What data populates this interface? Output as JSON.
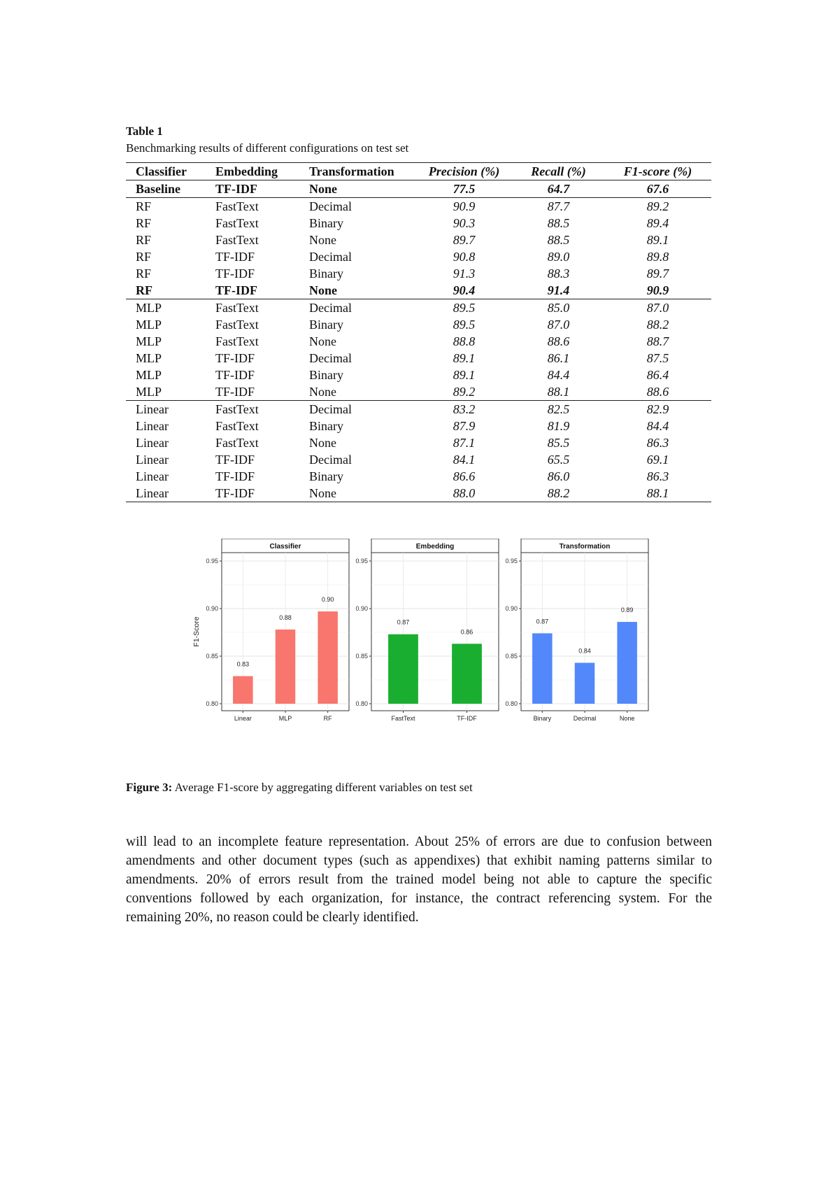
{
  "table": {
    "label": "Table 1",
    "caption": "Benchmarking results of different configurations on test set",
    "headers": [
      "Classifier",
      "Embedding",
      "Transformation",
      "Precision (%)",
      "Recall (%)",
      "F1-score (%)"
    ],
    "rows": [
      [
        "Baseline",
        "TF-IDF",
        "None",
        "77.5",
        "64.7",
        "67.6"
      ],
      [
        "RF",
        "FastText",
        "Decimal",
        "90.9",
        "87.7",
        "89.2"
      ],
      [
        "RF",
        "FastText",
        "Binary",
        "90.3",
        "88.5",
        "89.4"
      ],
      [
        "RF",
        "FastText",
        "None",
        "89.7",
        "88.5",
        "89.1"
      ],
      [
        "RF",
        "TF-IDF",
        "Decimal",
        "90.8",
        "89.0",
        "89.8"
      ],
      [
        "RF",
        "TF-IDF",
        "Binary",
        "91.3",
        "88.3",
        "89.7"
      ],
      [
        "RF",
        "TF-IDF",
        "None",
        "90.4",
        "91.4",
        "90.9"
      ],
      [
        "MLP",
        "FastText",
        "Decimal",
        "89.5",
        "85.0",
        "87.0"
      ],
      [
        "MLP",
        "FastText",
        "Binary",
        "89.5",
        "87.0",
        "88.2"
      ],
      [
        "MLP",
        "FastText",
        "None",
        "88.8",
        "88.6",
        "88.7"
      ],
      [
        "MLP",
        "TF-IDF",
        "Decimal",
        "89.1",
        "86.1",
        "87.5"
      ],
      [
        "MLP",
        "TF-IDF",
        "Binary",
        "89.1",
        "84.4",
        "86.4"
      ],
      [
        "MLP",
        "TF-IDF",
        "None",
        "89.2",
        "88.1",
        "88.6"
      ],
      [
        "Linear",
        "FastText",
        "Decimal",
        "83.2",
        "82.5",
        "82.9"
      ],
      [
        "Linear",
        "FastText",
        "Binary",
        "87.9",
        "81.9",
        "84.4"
      ],
      [
        "Linear",
        "FastText",
        "None",
        "87.1",
        "85.5",
        "86.3"
      ],
      [
        "Linear",
        "TF-IDF",
        "Decimal",
        "84.1",
        "65.5",
        "69.1"
      ],
      [
        "Linear",
        "TF-IDF",
        "Binary",
        "86.6",
        "86.0",
        "86.3"
      ],
      [
        "Linear",
        "TF-IDF",
        "None",
        "88.0",
        "88.2",
        "88.1"
      ]
    ],
    "bold_rows": [
      0,
      6
    ],
    "separator_after_rows": [
      0,
      6,
      12
    ]
  },
  "chart_data": [
    {
      "type": "bar",
      "title": "Classifier",
      "ylabel": "F1-Score",
      "ylim": [
        0.8,
        0.95
      ],
      "yticks": [
        "0.80",
        "0.85",
        "0.90",
        "0.95"
      ],
      "categories": [
        "Linear",
        "MLP",
        "RF"
      ],
      "values": [
        0.829,
        0.878,
        0.897
      ],
      "labels": [
        "0.83",
        "0.88",
        "0.90"
      ],
      "color": "#F8766D",
      "grid": true
    },
    {
      "type": "bar",
      "title": "Embedding",
      "ylim": [
        0.8,
        0.95
      ],
      "yticks": [
        "0.80",
        "0.85",
        "0.90",
        "0.95"
      ],
      "categories": [
        "FastText",
        "TF-IDF"
      ],
      "values": [
        0.873,
        0.863
      ],
      "labels": [
        "0.87",
        "0.86"
      ],
      "color": "#1AAE30",
      "grid": true
    },
    {
      "type": "bar",
      "title": "Transformation",
      "ylim": [
        0.8,
        0.95
      ],
      "yticks": [
        "0.80",
        "0.85",
        "0.90",
        "0.95"
      ],
      "categories": [
        "Binary",
        "Decimal",
        "None"
      ],
      "values": [
        0.874,
        0.843,
        0.886
      ],
      "labels": [
        "0.87",
        "0.84",
        "0.89"
      ],
      "color": "#5388FB",
      "grid": true
    }
  ],
  "figure": {
    "label": "Figure 3:",
    "caption": "Average F1-score by aggregating different variables on test set"
  },
  "body_text": "will lead to an incomplete feature representation. About 25% of errors are due to confusion between amendments and other document types (such as appendixes) that exhibit naming patterns similar to amendments. 20% of errors result from the trained model being not able to capture the specific conventions followed by each organization, for instance, the contract referencing system. For the remaining 20%, no reason could be clearly identified."
}
